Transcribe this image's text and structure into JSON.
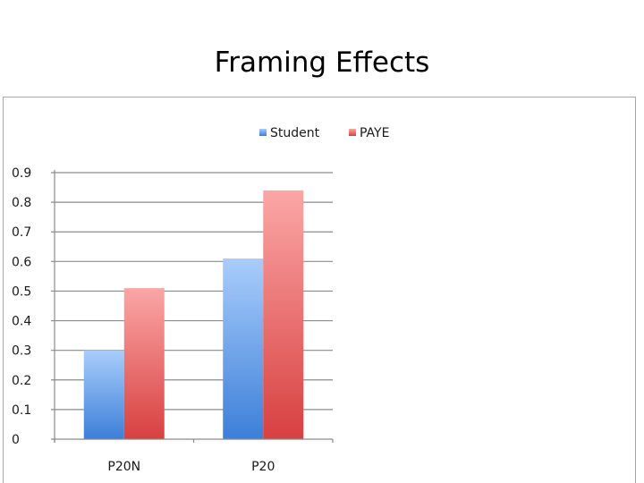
{
  "slide": {
    "title": "Framing Effects"
  },
  "colors": {
    "student_light": "#a9cdfb",
    "student_dark": "#3c7fd9",
    "paye_light": "#fba6a6",
    "paye_dark": "#d84040",
    "grid": "#8c8c8c"
  },
  "chart_data": {
    "type": "bar",
    "categories": [
      "P20N",
      "P20"
    ],
    "series": [
      {
        "name": "Student",
        "values": [
          0.3,
          0.61
        ]
      },
      {
        "name": "PAYE",
        "values": [
          0.51,
          0.84
        ]
      }
    ],
    "ylim": [
      0,
      0.9
    ],
    "yticks": [
      "0",
      "0.1",
      "0.2",
      "0.3",
      "0.4",
      "0.5",
      "0.6",
      "0.7",
      "0.8",
      "0.9"
    ],
    "title": "",
    "xlabel": "",
    "ylabel": "",
    "grid": true,
    "legend_position": "top-right"
  }
}
